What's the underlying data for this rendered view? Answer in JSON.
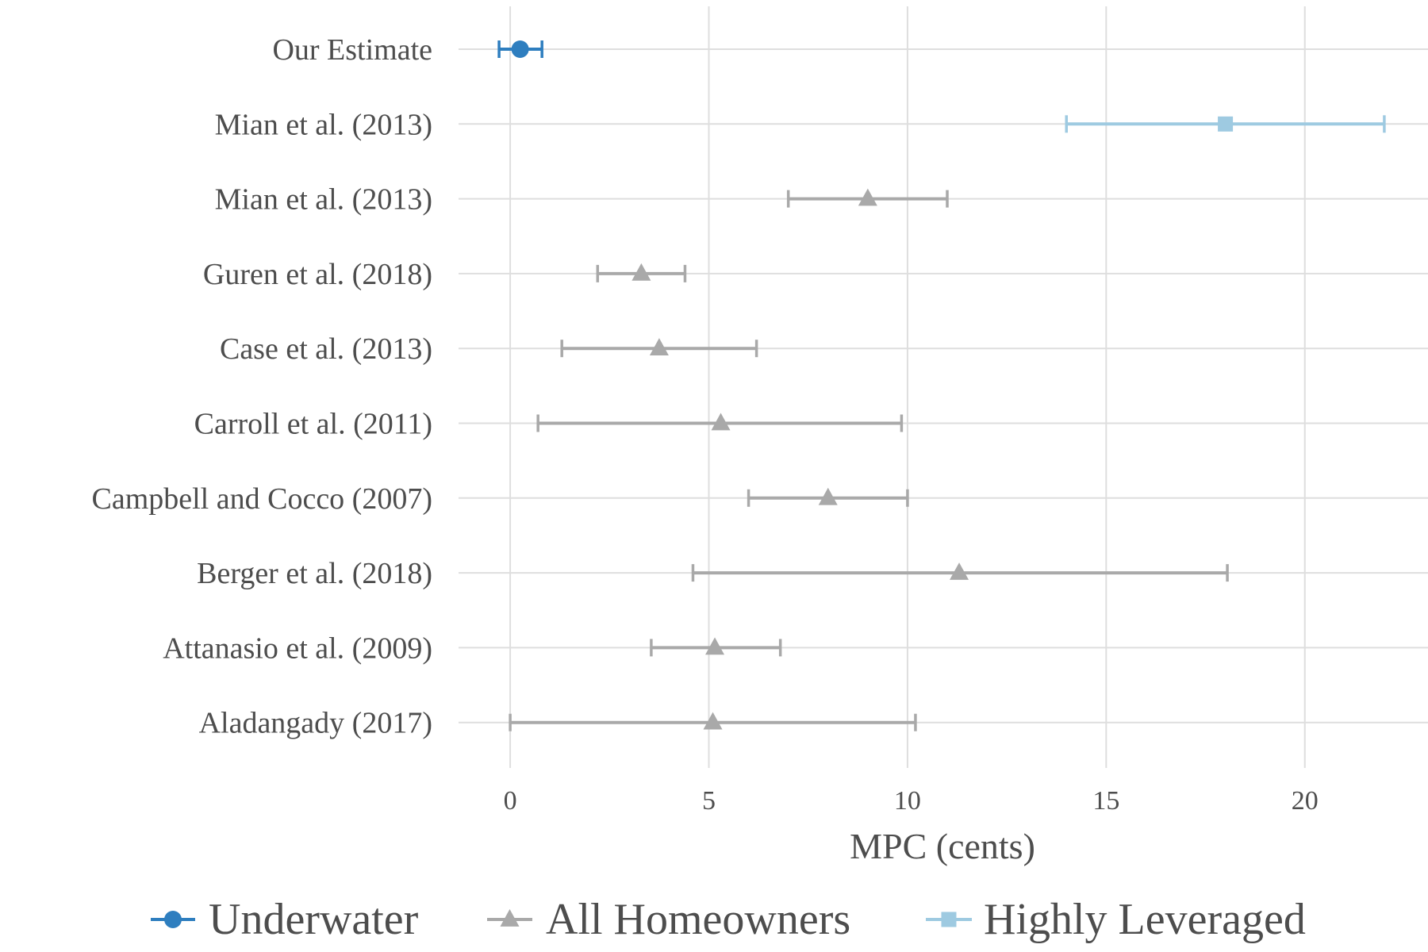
{
  "chart_data": {
    "type": "forest",
    "xlabel": "MPC (cents)",
    "xlim": [
      -1.3,
      23.1
    ],
    "xticks": [
      0,
      5,
      10,
      15,
      20
    ],
    "tick_labels": [
      "0",
      "5",
      "10",
      "15",
      "20"
    ],
    "grid": true,
    "legend_position": "bottom",
    "categories": [
      "Our Estimate",
      "Mian et al. (2013)",
      "Mian et al. (2013)",
      "Guren et al. (2018)",
      "Case et al. (2013)",
      "Carroll et al. (2011)",
      "Campbell and Cocco (2007)",
      "Berger et al. (2018)",
      "Attanasio et al. (2009)",
      "Aladangady (2017)"
    ],
    "series": [
      {
        "name": "Underwater",
        "color": "#2e7ebf",
        "marker": "circle",
        "points": [
          {
            "row": 0,
            "estimate": 0.25,
            "low": -0.28,
            "high": 0.8
          }
        ]
      },
      {
        "name": "All Homeowners",
        "color": "#a9a9a9",
        "marker": "triangle",
        "points": [
          {
            "row": 2,
            "estimate": 9.0,
            "low": 7.0,
            "high": 11.0
          },
          {
            "row": 3,
            "estimate": 3.3,
            "low": 2.2,
            "high": 4.4
          },
          {
            "row": 4,
            "estimate": 3.75,
            "low": 1.3,
            "high": 6.2
          },
          {
            "row": 5,
            "estimate": 5.3,
            "low": 0.7,
            "high": 9.85
          },
          {
            "row": 6,
            "estimate": 8.0,
            "low": 6.0,
            "high": 10.0
          },
          {
            "row": 7,
            "estimate": 11.3,
            "low": 4.6,
            "high": 18.05
          },
          {
            "row": 8,
            "estimate": 5.15,
            "low": 3.55,
            "high": 6.8
          },
          {
            "row": 9,
            "estimate": 5.1,
            "low": 0.0,
            "high": 10.2
          }
        ]
      },
      {
        "name": "Highly Leveraged",
        "color": "#9ecae1",
        "marker": "square",
        "points": [
          {
            "row": 1,
            "estimate": 18.0,
            "low": 14.0,
            "high": 22.0
          }
        ]
      }
    ]
  }
}
